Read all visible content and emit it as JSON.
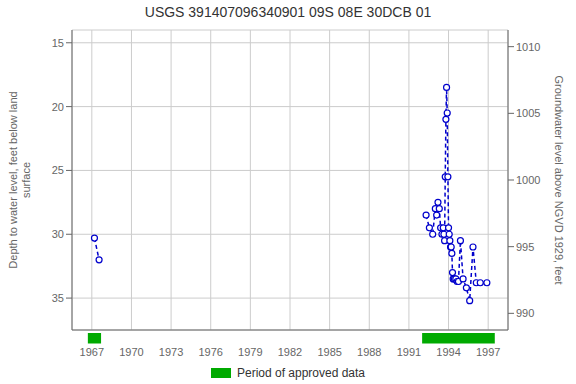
{
  "chart_data": {
    "type": "line",
    "title": "USGS 391407096340901 09S 08E 30DCB 01",
    "ylabel": "Depth to water level, feet below land\nsurface",
    "y2label": "Groundwater level above NGVD 1929, feet",
    "xlim": [
      1965.5,
      1998.5
    ],
    "xticks": [
      1967,
      1970,
      1973,
      1976,
      1979,
      1982,
      1985,
      1988,
      1991,
      1994,
      1997
    ],
    "ylim": [
      37.5,
      14.0
    ],
    "yticks": [
      15,
      20,
      25,
      30,
      35
    ],
    "y2lim": [
      988.75,
      1011.25
    ],
    "y2ticks": [
      990,
      995,
      1000,
      1005,
      1010
    ],
    "grid": true,
    "legend": "bottom",
    "series": [
      {
        "x": [
          1967.2,
          1967.55
        ],
        "values": [
          30.3,
          32.0
        ],
        "color": "#0000cc",
        "line_style": "dashed",
        "marker": "circle"
      },
      {
        "x": [
          1992.3,
          1992.55,
          1992.8,
          1993.0,
          1993.1,
          1993.2,
          1993.3,
          1993.4,
          1993.5,
          1993.6,
          1993.65,
          1993.7,
          1993.75,
          1993.8,
          1993.85,
          1993.9,
          1993.95,
          1994.0,
          1994.05,
          1994.1,
          1994.15,
          1994.2,
          1994.25,
          1994.3,
          1994.35,
          1994.45,
          1994.55,
          1994.65,
          1994.75,
          1994.9,
          1995.1,
          1995.35,
          1995.6,
          1995.85,
          1996.1,
          1996.4,
          1996.9
        ],
        "values": [
          28.5,
          29.5,
          30.0,
          28.0,
          28.5,
          27.5,
          28.0,
          29.5,
          30.0,
          29.5,
          30.0,
          30.5,
          25.5,
          21.0,
          18.5,
          20.5,
          25.5,
          29.5,
          30.0,
          30.5,
          31.0,
          31.0,
          31.5,
          33.0,
          33.5,
          33.5,
          33.5,
          33.7,
          33.7,
          30.5,
          33.5,
          34.2,
          35.2,
          31.0,
          33.8,
          33.8,
          33.8
        ],
        "color": "#0000cc",
        "line_style": "dashed",
        "marker": "circle"
      }
    ],
    "spans": [
      {
        "name": "Period of approved data",
        "color": "#00aa00",
        "ranges": [
          [
            1966.7,
            1967.7
          ],
          [
            1992.0,
            1997.5
          ]
        ]
      }
    ]
  }
}
